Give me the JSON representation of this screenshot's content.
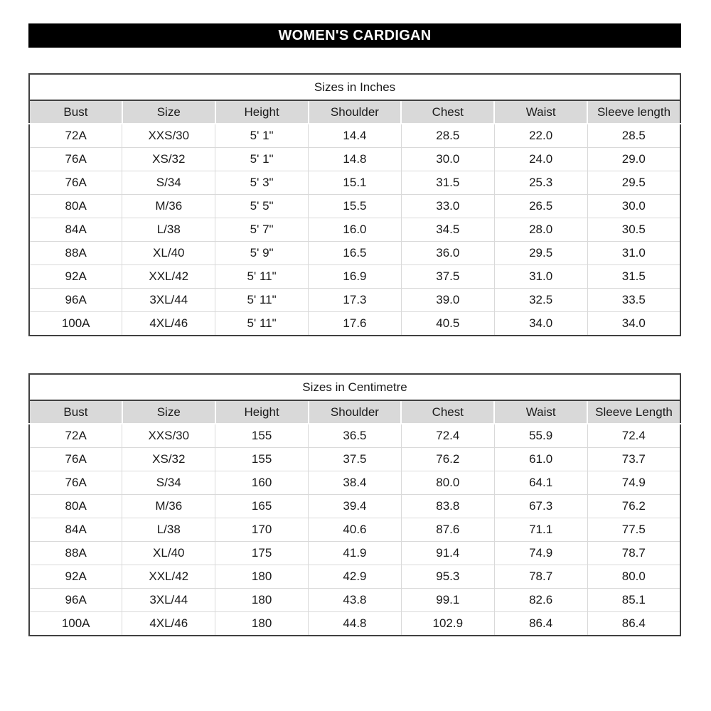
{
  "page_title": "WOMEN'S CARDIGAN",
  "colors": {
    "title_bar_bg": "#000000",
    "title_bar_text": "#ffffff",
    "header_row_bg": "#d9d9d9",
    "outer_border": "#404040",
    "inner_grid": "#d9d9d9"
  },
  "tables": [
    {
      "caption": "Sizes in Inches",
      "columns": [
        "Bust",
        "Size",
        "Height",
        "Shoulder",
        "Chest",
        "Waist",
        "Sleeve length"
      ],
      "rows": [
        [
          "72A",
          "XXS/30",
          "5' 1\"",
          "14.4",
          "28.5",
          "22.0",
          "28.5"
        ],
        [
          "76A",
          "XS/32",
          "5' 1\"",
          "14.8",
          "30.0",
          "24.0",
          "29.0"
        ],
        [
          "76A",
          "S/34",
          "5' 3\"",
          "15.1",
          "31.5",
          "25.3",
          "29.5"
        ],
        [
          "80A",
          "M/36",
          "5' 5\"",
          "15.5",
          "33.0",
          "26.5",
          "30.0"
        ],
        [
          "84A",
          "L/38",
          "5' 7\"",
          "16.0",
          "34.5",
          "28.0",
          "30.5"
        ],
        [
          "88A",
          "XL/40",
          "5' 9\"",
          "16.5",
          "36.0",
          "29.5",
          "31.0"
        ],
        [
          "92A",
          "XXL/42",
          "5' 11\"",
          "16.9",
          "37.5",
          "31.0",
          "31.5"
        ],
        [
          "96A",
          "3XL/44",
          "5' 11\"",
          "17.3",
          "39.0",
          "32.5",
          "33.5"
        ],
        [
          "100A",
          "4XL/46",
          "5' 11\"",
          "17.6",
          "40.5",
          "34.0",
          "34.0"
        ]
      ]
    },
    {
      "caption": "Sizes in Centimetre",
      "columns": [
        "Bust",
        "Size",
        "Height",
        "Shoulder",
        "Chest",
        "Waist",
        "Sleeve Length"
      ],
      "rows": [
        [
          "72A",
          "XXS/30",
          "155",
          "36.5",
          "72.4",
          "55.9",
          "72.4"
        ],
        [
          "76A",
          "XS/32",
          "155",
          "37.5",
          "76.2",
          "61.0",
          "73.7"
        ],
        [
          "76A",
          "S/34",
          "160",
          "38.4",
          "80.0",
          "64.1",
          "74.9"
        ],
        [
          "80A",
          "M/36",
          "165",
          "39.4",
          "83.8",
          "67.3",
          "76.2"
        ],
        [
          "84A",
          "L/38",
          "170",
          "40.6",
          "87.6",
          "71.1",
          "77.5"
        ],
        [
          "88A",
          "XL/40",
          "175",
          "41.9",
          "91.4",
          "74.9",
          "78.7"
        ],
        [
          "92A",
          "XXL/42",
          "180",
          "42.9",
          "95.3",
          "78.7",
          "80.0"
        ],
        [
          "96A",
          "3XL/44",
          "180",
          "43.8",
          "99.1",
          "82.6",
          "85.1"
        ],
        [
          "100A",
          "4XL/46",
          "180",
          "44.8",
          "102.9",
          "86.4",
          "86.4"
        ]
      ]
    }
  ]
}
